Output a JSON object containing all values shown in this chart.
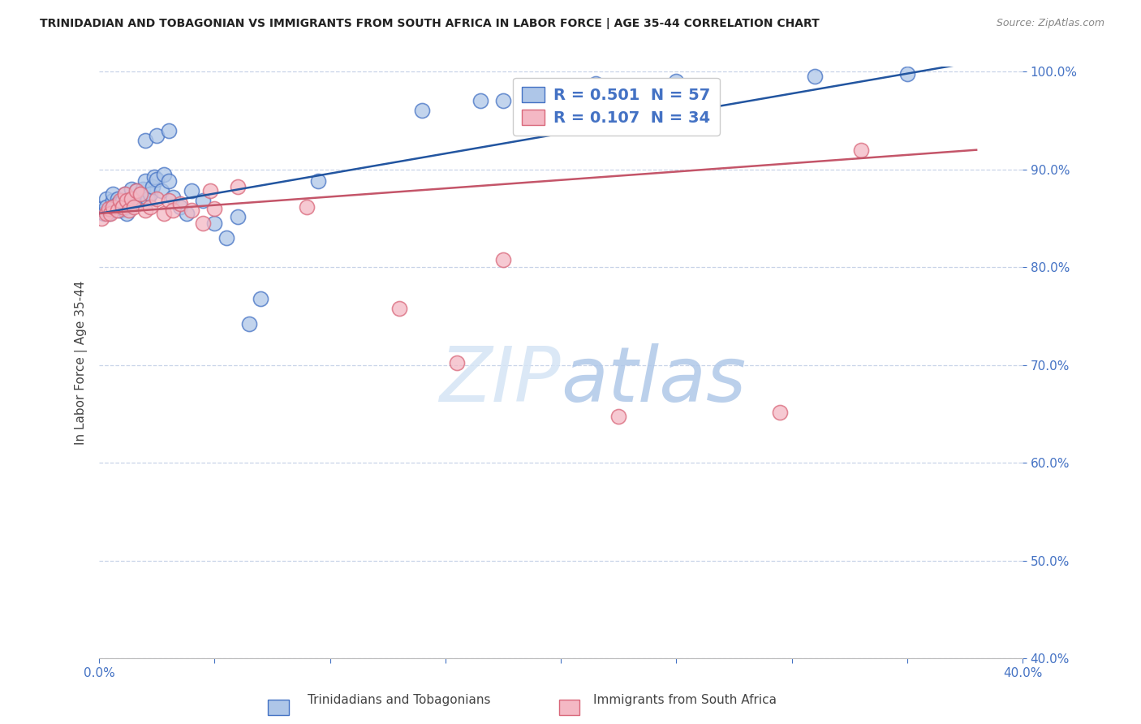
{
  "title": "TRINIDADIAN AND TOBAGONIAN VS IMMIGRANTS FROM SOUTH AFRICA IN LABOR FORCE | AGE 35-44 CORRELATION CHART",
  "source": "Source: ZipAtlas.com",
  "ylabel": "In Labor Force | Age 35-44",
  "xlim": [
    0.0,
    0.4
  ],
  "ylim": [
    0.4,
    1.005
  ],
  "xtick_vals": [
    0.0,
    0.05,
    0.1,
    0.15,
    0.2,
    0.25,
    0.3,
    0.35,
    0.4
  ],
  "xtick_labels": [
    "0.0%",
    "",
    "",
    "",
    "",
    "",
    "",
    "",
    "40.0%"
  ],
  "ytick_vals": [
    0.4,
    0.5,
    0.6,
    0.7,
    0.8,
    0.9,
    1.0
  ],
  "ytick_labels": [
    "40.0%",
    "50.0%",
    "60.0%",
    "70.0%",
    "80.0%",
    "90.0%",
    "100.0%"
  ],
  "blue_fill": "#aec6e8",
  "blue_edge": "#4472c4",
  "pink_fill": "#f4b8c4",
  "pink_edge": "#d9677a",
  "blue_line_color": "#2255a0",
  "pink_line_color": "#c45569",
  "legend_blue_fill": "#aec6e8",
  "legend_blue_edge": "#4472c4",
  "legend_pink_fill": "#f4b8c4",
  "legend_pink_edge": "#d9677a",
  "blue_R": "0.501",
  "blue_N": "57",
  "pink_R": "0.107",
  "pink_N": "34",
  "grid_color": "#c8d4e8",
  "bg_color": "#ffffff",
  "title_color": "#222222",
  "tick_color": "#4472c4",
  "blue_x": [
    0.001,
    0.002,
    0.003,
    0.003,
    0.004,
    0.005,
    0.006,
    0.006,
    0.007,
    0.008,
    0.008,
    0.009,
    0.01,
    0.01,
    0.011,
    0.012,
    0.012,
    0.013,
    0.014,
    0.015,
    0.015,
    0.016,
    0.017,
    0.018,
    0.019,
    0.02,
    0.021,
    0.022,
    0.023,
    0.024,
    0.025,
    0.027,
    0.028,
    0.03,
    0.032,
    0.035,
    0.038,
    0.04,
    0.045,
    0.05,
    0.055,
    0.06,
    0.065,
    0.07,
    0.02,
    0.025,
    0.03,
    0.095,
    0.14,
    0.165,
    0.175,
    0.185,
    0.2,
    0.215,
    0.25,
    0.31,
    0.35
  ],
  "blue_y": [
    0.86,
    0.855,
    0.87,
    0.862,
    0.855,
    0.858,
    0.868,
    0.875,
    0.862,
    0.87,
    0.865,
    0.858,
    0.868,
    0.86,
    0.875,
    0.862,
    0.855,
    0.868,
    0.88,
    0.865,
    0.87,
    0.878,
    0.868,
    0.875,
    0.88,
    0.888,
    0.87,
    0.875,
    0.882,
    0.892,
    0.89,
    0.878,
    0.895,
    0.888,
    0.872,
    0.862,
    0.855,
    0.878,
    0.868,
    0.845,
    0.83,
    0.852,
    0.742,
    0.768,
    0.93,
    0.935,
    0.94,
    0.888,
    0.96,
    0.97,
    0.97,
    0.978,
    0.982,
    0.988,
    0.99,
    0.995,
    0.998
  ],
  "pink_x": [
    0.001,
    0.003,
    0.004,
    0.005,
    0.006,
    0.008,
    0.009,
    0.01,
    0.011,
    0.012,
    0.013,
    0.014,
    0.015,
    0.016,
    0.018,
    0.02,
    0.022,
    0.025,
    0.028,
    0.03,
    0.032,
    0.035,
    0.04,
    0.045,
    0.048,
    0.05,
    0.06,
    0.09,
    0.13,
    0.155,
    0.175,
    0.225,
    0.295,
    0.33
  ],
  "pink_y": [
    0.85,
    0.855,
    0.86,
    0.855,
    0.862,
    0.858,
    0.868,
    0.862,
    0.875,
    0.868,
    0.858,
    0.87,
    0.862,
    0.878,
    0.875,
    0.858,
    0.862,
    0.87,
    0.855,
    0.868,
    0.858,
    0.865,
    0.858,
    0.845,
    0.878,
    0.86,
    0.882,
    0.862,
    0.758,
    0.702,
    0.808,
    0.648,
    0.652,
    0.92
  ],
  "watermark_zip_color": "#d5e5f5",
  "watermark_atlas_color": "#b0c8e8"
}
